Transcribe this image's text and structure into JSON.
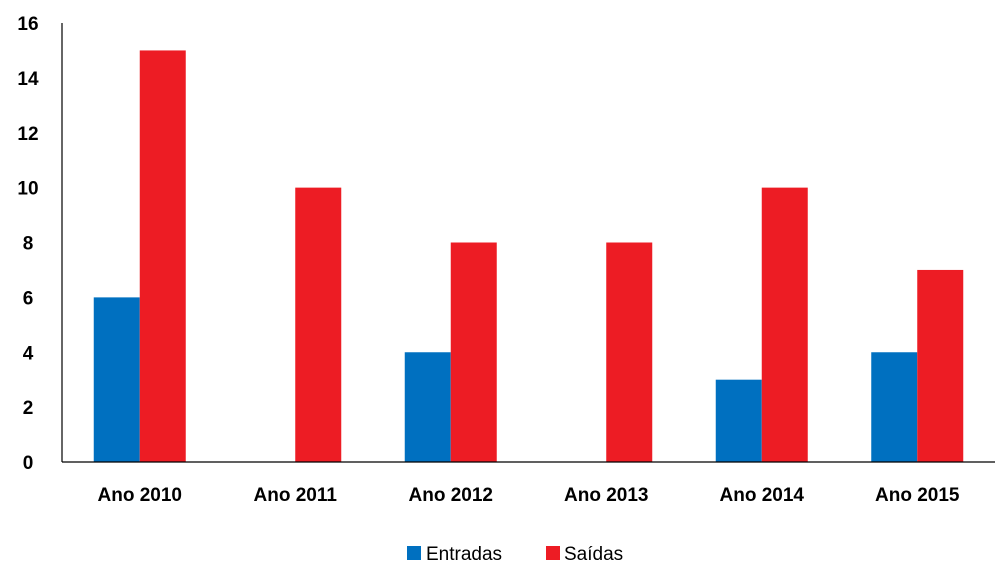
{
  "chart_data": {
    "type": "bar",
    "categories": [
      "Ano 2010",
      "Ano 2011",
      "Ano 2012",
      "Ano 2013",
      "Ano 2014",
      "Ano 2015"
    ],
    "series": [
      {
        "name": "Entradas",
        "color": "#0070C0",
        "values": [
          6,
          0,
          4,
          0,
          3,
          4
        ]
      },
      {
        "name": "Saídas",
        "color": "#ED1C24",
        "values": [
          15,
          10,
          8,
          8,
          10,
          7
        ]
      }
    ],
    "yticks": [
      "0",
      "2",
      "4",
      "6",
      "8",
      "10",
      "12",
      "14",
      "16"
    ],
    "ylim": [
      0,
      16
    ],
    "grid": false,
    "legend": "bottom-center",
    "title": "",
    "xlabel": "",
    "ylabel": ""
  }
}
